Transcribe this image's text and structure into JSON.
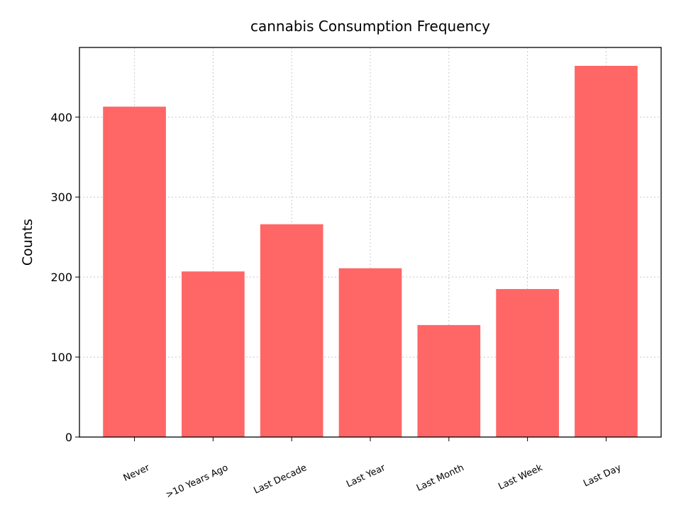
{
  "chart_data": {
    "type": "bar",
    "title": "cannabis Consumption Frequency",
    "xlabel": "",
    "ylabel": "Counts",
    "categories": [
      "Never",
      ">10 Years Ago",
      "Last Decade",
      "Last Year",
      "Last Month",
      "Last Week",
      "Last Day"
    ],
    "values": [
      413,
      207,
      266,
      211,
      140,
      185,
      464
    ],
    "yticks": [
      0,
      100,
      200,
      300,
      400
    ],
    "ylim": [
      0,
      487
    ],
    "grid": true,
    "bar_color": "#ff6666"
  }
}
